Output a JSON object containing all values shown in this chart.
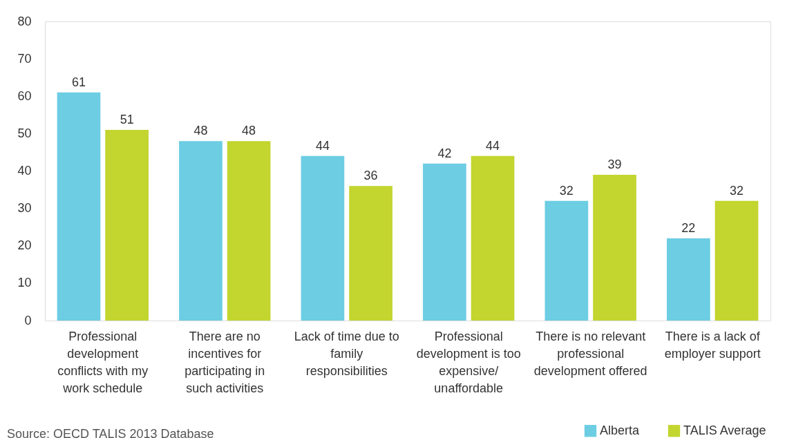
{
  "chart_data": {
    "type": "bar",
    "categories": [
      "Professional development conflicts with my work schedule",
      "There are no incentives for participating in such activities",
      "Lack of time due to family responsibilities",
      "Professional development is too expensive/ unaffordable",
      "There is no relevant professional development offered",
      "There is a lack of employer support"
    ],
    "series": [
      {
        "name": "Alberta",
        "color": "#6ccde3",
        "values": [
          61,
          48,
          44,
          42,
          32,
          22
        ]
      },
      {
        "name": "TALIS Average",
        "color": "#c3d52f",
        "values": [
          51,
          48,
          36,
          44,
          39,
          32
        ]
      }
    ],
    "ylim": [
      0,
      80
    ],
    "yticks": [
      0,
      10,
      20,
      30,
      40,
      50,
      60,
      70,
      80
    ],
    "data_labels": true,
    "grid": false,
    "legend": "bottom right",
    "annotations": [
      "Source:    OECD TALIS 2013 Database"
    ]
  }
}
